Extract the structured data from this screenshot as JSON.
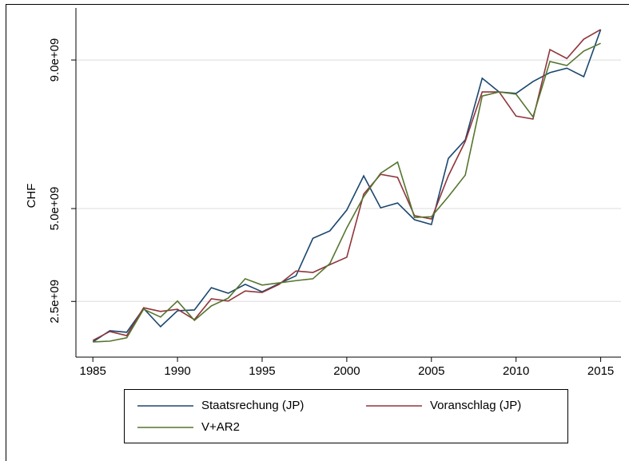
{
  "chart_data": {
    "type": "line",
    "y_label": "CHF",
    "x": [
      1985,
      1986,
      1987,
      1988,
      1989,
      1990,
      1991,
      1992,
      1993,
      1994,
      1995,
      1996,
      1997,
      1998,
      1999,
      2000,
      2001,
      2002,
      2003,
      2004,
      2005,
      2006,
      2007,
      2008,
      2009,
      2010,
      2011,
      2012,
      2013,
      2014,
      2015
    ],
    "series": [
      {
        "name": "Staatsrechung (JP)",
        "color": "#1a476f",
        "values": [
          1410000000.0,
          1710000000.0,
          1670000000.0,
          2310000000.0,
          1820000000.0,
          2250000000.0,
          2270000000.0,
          2870000000.0,
          2720000000.0,
          2960000000.0,
          2760000000.0,
          2980000000.0,
          3190000000.0,
          4200000000.0,
          4400000000.0,
          4960000000.0,
          5880000000.0,
          5020000000.0,
          5150000000.0,
          4700000000.0,
          4570000000.0,
          6350000000.0,
          6850000000.0,
          8510000000.0,
          8140000000.0,
          8100000000.0,
          8420000000.0,
          8660000000.0,
          8780000000.0,
          8550000000.0,
          9820000000.0
        ]
      },
      {
        "name": "Voranschlag (JP)",
        "color": "#90353b",
        "values": [
          1450000000.0,
          1690000000.0,
          1580000000.0,
          2330000000.0,
          2230000000.0,
          2290000000.0,
          2010000000.0,
          2570000000.0,
          2510000000.0,
          2780000000.0,
          2740000000.0,
          2960000000.0,
          3320000000.0,
          3280000000.0,
          3490000000.0,
          3690000000.0,
          5390000000.0,
          5920000000.0,
          5840000000.0,
          4810000000.0,
          4720000000.0,
          5880000000.0,
          6810000000.0,
          8140000000.0,
          8140000000.0,
          7490000000.0,
          7410000000.0,
          9280000000.0,
          9040000000.0,
          9560000000.0,
          9820000000.0
        ]
      },
      {
        "name": "V+AR2",
        "color": "#55752f",
        "values": [
          1410000000.0,
          1430000000.0,
          1520000000.0,
          2290000000.0,
          2080000000.0,
          2510000000.0,
          1990000000.0,
          2380000000.0,
          2590000000.0,
          3110000000.0,
          2940000000.0,
          3000000000.0,
          3060000000.0,
          3110000000.0,
          3520000000.0,
          4480000000.0,
          5320000000.0,
          5950000000.0,
          6250000000.0,
          4760000000.0,
          4780000000.0,
          5320000000.0,
          5900000000.0,
          8030000000.0,
          8140000000.0,
          8080000000.0,
          7470000000.0,
          8960000000.0,
          8850000000.0,
          9240000000.0,
          9450000000.0
        ]
      }
    ],
    "xlim": [
      1984,
      2016.2
    ],
    "xticks": [
      1985,
      1990,
      1995,
      2000,
      2005,
      2010,
      2015
    ],
    "ylim": [
      1000000000.0,
      10400000000.0
    ],
    "yticks": [
      {
        "value": 2500000000.0,
        "label": "2.5e+09"
      },
      {
        "value": 5000000000.0,
        "label": "5.0e+09"
      },
      {
        "value": 9000000000.0,
        "label": "9.0e+09"
      }
    ],
    "grid": true,
    "legend_position": "bottom"
  }
}
